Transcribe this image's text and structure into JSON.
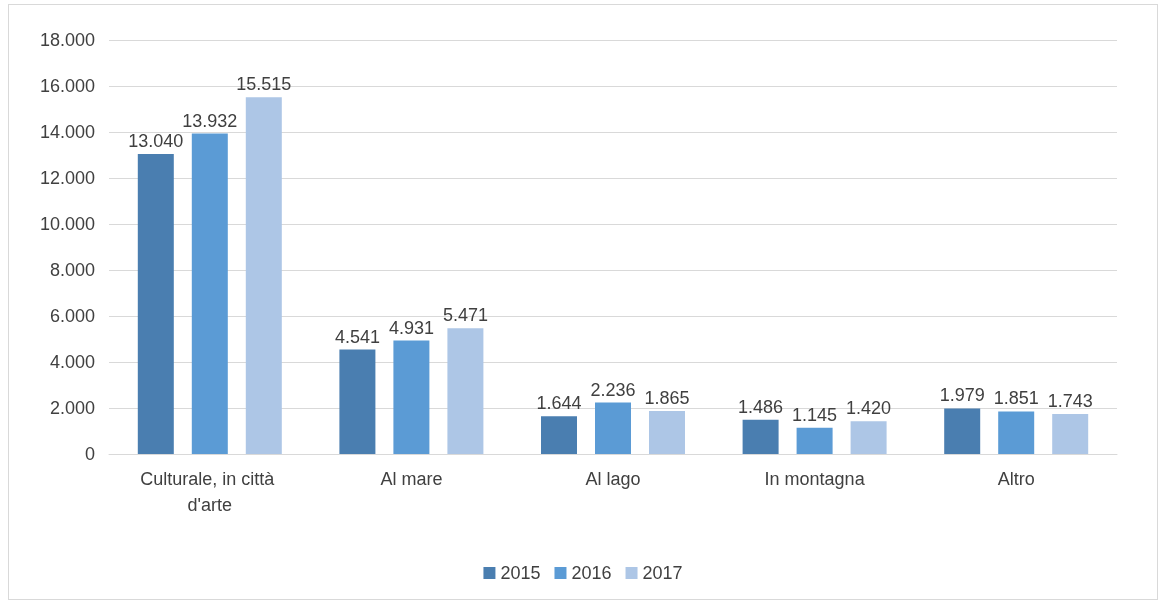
{
  "chart_data": {
    "type": "bar",
    "categories": [
      "Culturale, in città d'arte",
      "Al mare",
      "Al lago",
      "In montagna",
      "Altro"
    ],
    "series": [
      {
        "name": "2015",
        "color": "#4a7eb0",
        "values": [
          13040,
          4541,
          1644,
          1486,
          1979
        ],
        "value_labels": [
          "13.040",
          "4.541",
          "1.644",
          "1.486",
          "1.979"
        ]
      },
      {
        "name": "2016",
        "color": "#5b9bd5",
        "values": [
          13932,
          4931,
          2236,
          1145,
          1851
        ],
        "value_labels": [
          "13.932",
          "4.931",
          "2.236",
          "1.145",
          "1.851"
        ]
      },
      {
        "name": "2017",
        "color": "#adc6e6",
        "values": [
          15515,
          5471,
          1865,
          1420,
          1743
        ],
        "value_labels": [
          "15.515",
          "5.471",
          "1.865",
          "1.420",
          "1.743"
        ]
      }
    ],
    "ylim": [
      0,
      18000
    ],
    "yticks": [
      {
        "value": 0,
        "label": "0"
      },
      {
        "value": 2000,
        "label": "2.000"
      },
      {
        "value": 4000,
        "label": "4.000"
      },
      {
        "value": 6000,
        "label": "6.000"
      },
      {
        "value": 8000,
        "label": "8.000"
      },
      {
        "value": 10000,
        "label": "10.000"
      },
      {
        "value": 12000,
        "label": "12.000"
      },
      {
        "value": 14000,
        "label": "14.000"
      },
      {
        "value": 16000,
        "label": "16.000"
      },
      {
        "value": 18000,
        "label": "18.000"
      }
    ],
    "grid": true,
    "legend": "bottom"
  }
}
